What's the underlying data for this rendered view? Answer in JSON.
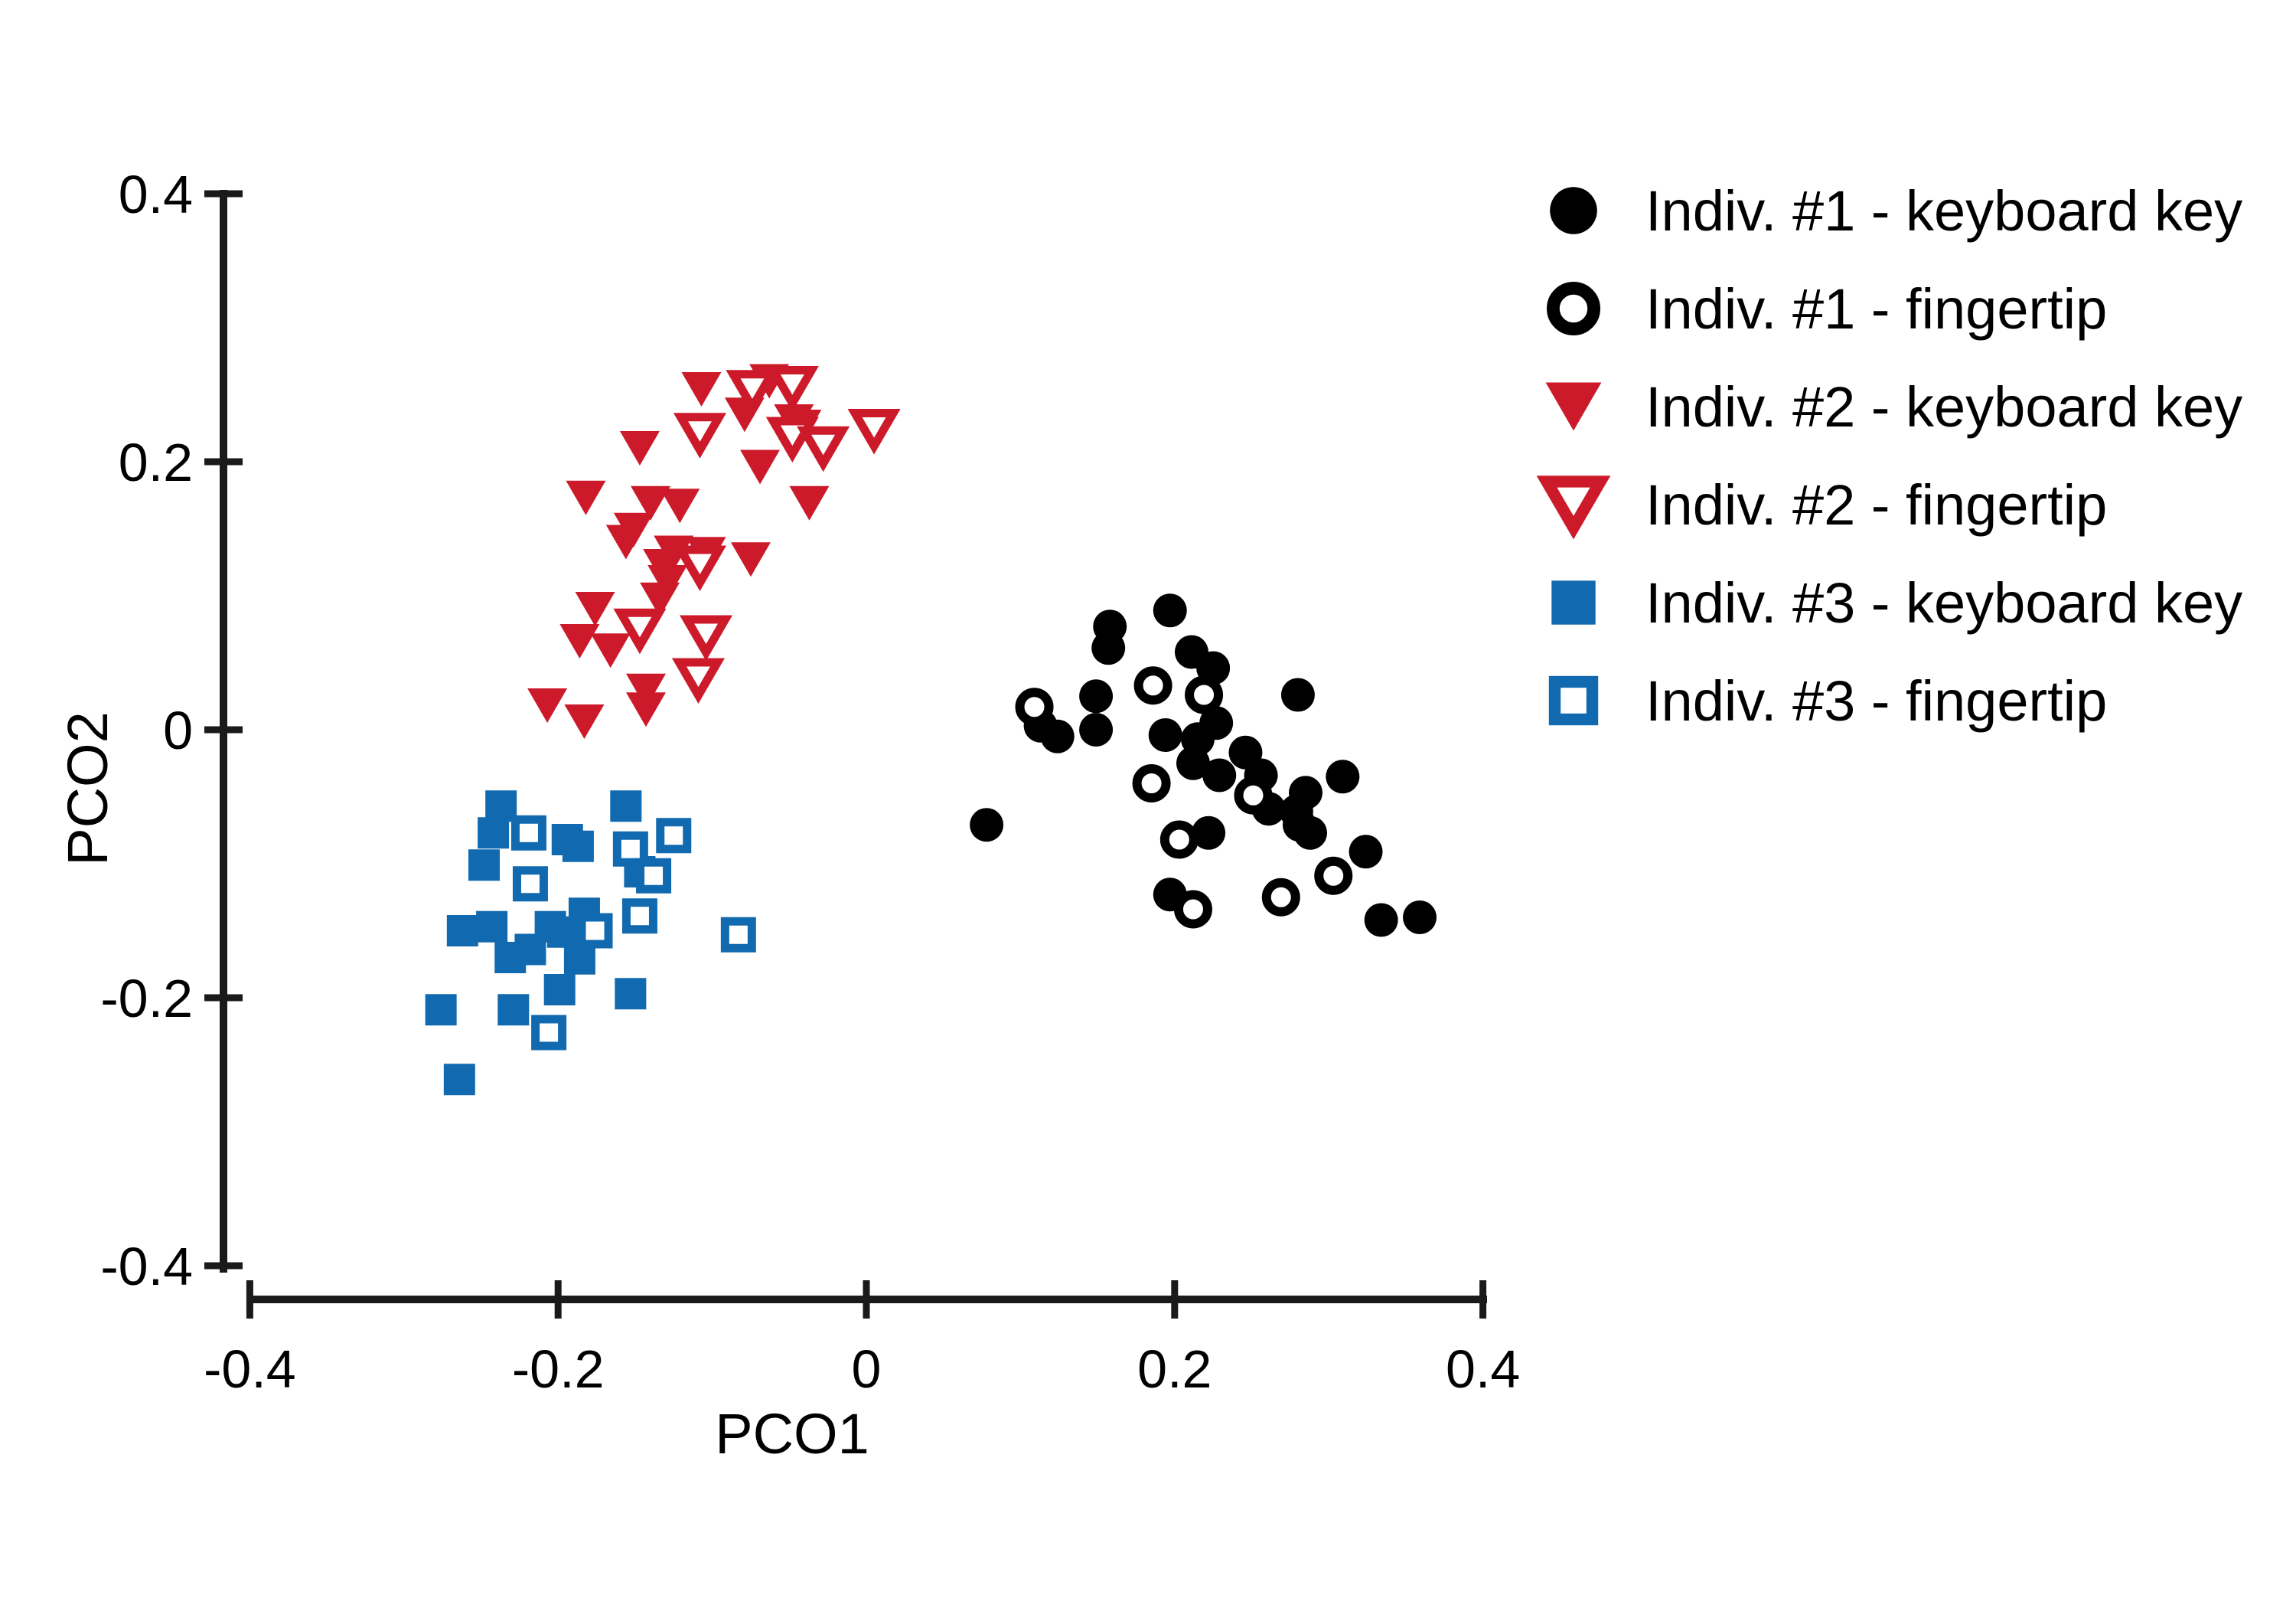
{
  "figure": {
    "background": "#ffffff",
    "axis_color": "#1a1a1a",
    "text_color": "#000000"
  },
  "chart_data": {
    "type": "scatter",
    "title": "",
    "xlabel": "PCO1",
    "ylabel": "PCO2",
    "xlim": [
      -0.4,
      0.4
    ],
    "ylim": [
      -0.4,
      0.4
    ],
    "grid": false,
    "legend_position": "right",
    "xticks": [
      {
        "v": -0.4,
        "label": "-0.4"
      },
      {
        "v": -0.2,
        "label": "-0.2"
      },
      {
        "v": 0,
        "label": "0"
      },
      {
        "v": 0.2,
        "label": "0.2"
      },
      {
        "v": 0.4,
        "label": "0.4"
      }
    ],
    "yticks": [
      {
        "v": 0.4,
        "label": "0.4"
      },
      {
        "v": 0.2,
        "label": "0.2"
      },
      {
        "v": 0,
        "label": "0"
      },
      {
        "v": -0.2,
        "label": "-0.2"
      },
      {
        "v": -0.4,
        "label": "-0.4"
      }
    ],
    "series": [
      {
        "name": "Indiv. #2 - keyboard key",
        "marker": "triangle-down",
        "fill": "filled",
        "color": "#cd1a2b",
        "points": [
          [
            -0.107,
            0.254
          ],
          [
            -0.063,
            0.26
          ],
          [
            -0.079,
            0.235
          ],
          [
            -0.047,
            0.23
          ],
          [
            -0.042,
            0.226
          ],
          [
            -0.147,
            0.21
          ],
          [
            -0.069,
            0.196
          ],
          [
            -0.182,
            0.173
          ],
          [
            -0.14,
            0.169
          ],
          [
            -0.121,
            0.167
          ],
          [
            -0.037,
            0.169
          ],
          [
            -0.151,
            0.149
          ],
          [
            -0.156,
            0.14
          ],
          [
            -0.125,
            0.132
          ],
          [
            -0.104,
            0.131
          ],
          [
            -0.075,
            0.127
          ],
          [
            -0.132,
            0.122
          ],
          [
            -0.129,
            0.11
          ],
          [
            -0.134,
            0.097
          ],
          [
            -0.176,
            0.09
          ],
          [
            -0.186,
            0.066
          ],
          [
            -0.166,
            0.059
          ],
          [
            -0.143,
            0.029
          ],
          [
            -0.143,
            0.015
          ],
          [
            -0.207,
            0.018
          ],
          [
            -0.183,
            0.006
          ]
        ]
      },
      {
        "name": "Indiv. #2 - fingertip",
        "marker": "triangle-down",
        "fill": "open",
        "color": "#cd1a2b",
        "points": [
          [
            -0.074,
            0.253
          ],
          [
            -0.048,
            0.256
          ],
          [
            -0.048,
            0.218
          ],
          [
            -0.028,
            0.211
          ],
          [
            0.005,
            0.224
          ],
          [
            -0.108,
            0.221
          ],
          [
            -0.108,
            0.122
          ],
          [
            -0.147,
            0.075
          ],
          [
            -0.104,
            0.07
          ],
          [
            -0.109,
            0.038
          ]
        ]
      },
      {
        "name": "Indiv. #3 - keyboard key",
        "marker": "square",
        "fill": "filled",
        "color": "#1169af",
        "points": [
          [
            -0.237,
            -0.057
          ],
          [
            -0.242,
            -0.077
          ],
          [
            -0.194,
            -0.082
          ],
          [
            -0.187,
            -0.087
          ],
          [
            -0.156,
            -0.057
          ],
          [
            -0.147,
            -0.106
          ],
          [
            -0.248,
            -0.101
          ],
          [
            -0.262,
            -0.15
          ],
          [
            -0.243,
            -0.147
          ],
          [
            -0.205,
            -0.147
          ],
          [
            -0.197,
            -0.151
          ],
          [
            -0.183,
            -0.137
          ],
          [
            -0.231,
            -0.17
          ],
          [
            -0.218,
            -0.164
          ],
          [
            -0.186,
            -0.171
          ],
          [
            -0.276,
            -0.209
          ],
          [
            -0.229,
            -0.209
          ],
          [
            -0.199,
            -0.194
          ],
          [
            -0.153,
            -0.197
          ],
          [
            -0.264,
            -0.261
          ]
        ]
      },
      {
        "name": "Indiv. #3 - fingertip",
        "marker": "square",
        "fill": "open",
        "color": "#1169af",
        "points": [
          [
            -0.219,
            -0.077
          ],
          [
            -0.125,
            -0.079
          ],
          [
            -0.153,
            -0.089
          ],
          [
            -0.138,
            -0.109
          ],
          [
            -0.218,
            -0.115
          ],
          [
            -0.176,
            -0.15
          ],
          [
            -0.147,
            -0.139
          ],
          [
            -0.083,
            -0.153
          ],
          [
            -0.206,
            -0.226
          ]
        ]
      },
      {
        "name": "Indiv. #1 - keyboard key",
        "marker": "circle",
        "fill": "filled",
        "color": "#000000",
        "points": [
          [
            0.158,
            0.077
          ],
          [
            0.157,
            0.061
          ],
          [
            0.197,
            0.089
          ],
          [
            0.211,
            0.058
          ],
          [
            0.225,
            0.046
          ],
          [
            0.149,
            0.025
          ],
          [
            0.113,
            0.003
          ],
          [
            0.124,
            -0.005
          ],
          [
            0.149,
            0.0
          ],
          [
            0.194,
            -0.004
          ],
          [
            0.215,
            -0.007
          ],
          [
            0.227,
            0.005
          ],
          [
            0.246,
            -0.017
          ],
          [
            0.212,
            -0.025
          ],
          [
            0.229,
            -0.034
          ],
          [
            0.28,
            0.026
          ],
          [
            0.256,
            -0.034
          ],
          [
            0.309,
            -0.035
          ],
          [
            0.261,
            -0.059
          ],
          [
            0.279,
            -0.061
          ],
          [
            0.285,
            -0.047
          ],
          [
            0.281,
            -0.071
          ],
          [
            0.288,
            -0.077
          ],
          [
            0.222,
            -0.077
          ],
          [
            0.324,
            -0.091
          ],
          [
            0.078,
            -0.071
          ],
          [
            0.197,
            -0.123
          ],
          [
            0.334,
            -0.142
          ],
          [
            0.359,
            -0.14
          ]
        ]
      },
      {
        "name": "Indiv. #1 - fingertip",
        "marker": "circle",
        "fill": "open",
        "color": "#000000",
        "points": [
          [
            0.186,
            0.033
          ],
          [
            0.219,
            0.026
          ],
          [
            0.109,
            0.017
          ],
          [
            0.185,
            -0.04
          ],
          [
            0.251,
            -0.049
          ],
          [
            0.203,
            -0.082
          ],
          [
            0.303,
            -0.109
          ],
          [
            0.212,
            -0.134
          ],
          [
            0.269,
            -0.125
          ]
        ]
      }
    ],
    "legend_order": [
      "Indiv. #1 - keyboard key",
      "Indiv. #1 - fingertip",
      "Indiv. #2 - keyboard key",
      "Indiv. #2 - fingertip",
      "Indiv. #3 - keyboard key",
      "Indiv. #3 - fingertip"
    ]
  }
}
